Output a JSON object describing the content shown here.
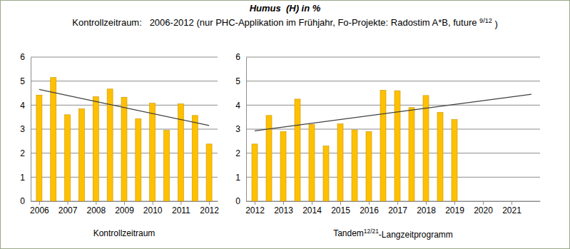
{
  "title": "Humus  (H) in %",
  "subtitle": [
    "Kontrollzeitraum:   2006-2012 (nur PHC-Applikation im Frühjahr, Fo-Projekte: Radostim A*B, future ",
    "9/12",
    " )"
  ],
  "chart_data": [
    {
      "type": "bar",
      "x_label": [
        "Kontrollzeitraum"
      ],
      "xlim": [
        2005.7,
        2012.3
      ],
      "xticks": [
        2006,
        2007,
        2008,
        2009,
        2010,
        2011,
        2012
      ],
      "ylim": [
        0,
        6
      ],
      "yticks": [
        0,
        1,
        2,
        3,
        4,
        5,
        6
      ],
      "grid": true,
      "series": [
        {
          "type": "bar",
          "color": "#ffc000",
          "x": [
            2006,
            2006.5,
            2007,
            2007.5,
            2008,
            2008.5,
            2009,
            2009.5,
            2010,
            2010.5,
            2011,
            2011.5,
            2012
          ],
          "values": [
            4.42,
            5.15,
            3.6,
            3.85,
            4.35,
            4.67,
            4.33,
            3.43,
            4.08,
            2.95,
            4.05,
            3.57,
            2.38
          ]
        },
        {
          "type": "line",
          "color": "#404040",
          "x": [
            2006,
            2012
          ],
          "values": [
            4.65,
            3.15
          ]
        }
      ]
    },
    {
      "type": "bar",
      "x_label": [
        "Tandem",
        "12/21",
        "-Langzeitprogramm"
      ],
      "xlim": [
        2011.7,
        2022
      ],
      "xticks": [
        2012,
        2013,
        2014,
        2015,
        2016,
        2017,
        2018,
        2019,
        2020,
        2021
      ],
      "ylim": [
        0,
        6
      ],
      "yticks": [
        0,
        1,
        2,
        3,
        4,
        5,
        6
      ],
      "grid": true,
      "series": [
        {
          "type": "bar",
          "color": "#ffc000",
          "x": [
            2012,
            2012.5,
            2013,
            2013.5,
            2014,
            2014.5,
            2015,
            2015.5,
            2016,
            2016.5,
            2017,
            2017.5,
            2018,
            2018.5,
            2019
          ],
          "values": [
            2.38,
            3.57,
            2.9,
            4.25,
            3.2,
            2.3,
            3.22,
            2.97,
            2.9,
            4.62,
            4.6,
            3.9,
            4.4,
            3.7,
            3.4
          ]
        },
        {
          "type": "line",
          "color": "#404040",
          "x": [
            2012,
            2021.7
          ],
          "values": [
            2.93,
            4.45
          ]
        }
      ]
    }
  ]
}
